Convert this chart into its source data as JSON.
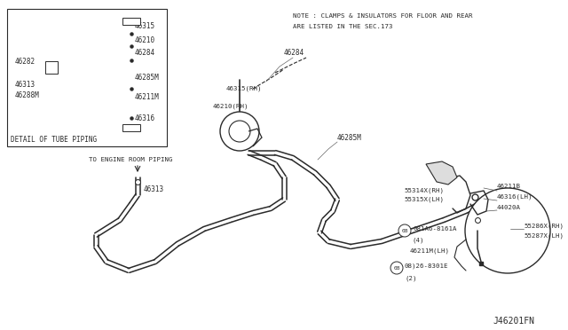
{
  "background_color": "#ffffff",
  "line_color": "#2a2a2a",
  "text_color": "#2a2a2a",
  "fig_width": 6.4,
  "fig_height": 3.72,
  "note_line1": "NOTE : CLAMPS & INSULATORS FOR FLOOR AND REAR",
  "note_line2": "ARE LISTED IN THE SEC.173",
  "diagram_id": "J46201FN",
  "detail_box_label": "DETAIL OF TUBE PIPING",
  "engine_label": "TO ENGINE ROOM PIPING"
}
